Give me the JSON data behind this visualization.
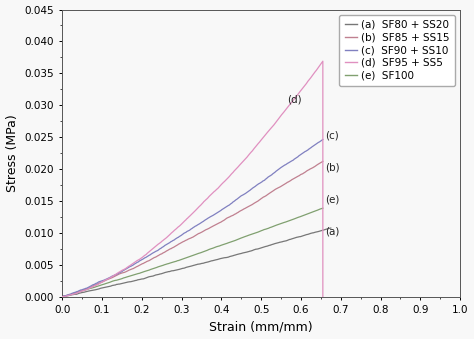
{
  "xlabel": "Strain (mm/mm)",
  "ylabel": "Stress (MPa)",
  "xlim": [
    0.0,
    1.0
  ],
  "ylim": [
    0.0,
    0.045
  ],
  "xticks": [
    0.0,
    0.1,
    0.2,
    0.3,
    0.4,
    0.5,
    0.6,
    0.7,
    0.8,
    0.9,
    1.0
  ],
  "yticks": [
    0.0,
    0.005,
    0.01,
    0.015,
    0.02,
    0.025,
    0.03,
    0.035,
    0.04,
    0.045
  ],
  "legend_labels": [
    "(a)  SF80 + SS20",
    "(b)  SF85 + SS15",
    "(c)  SF90 + SS10",
    "(d)  SF95 + SS5",
    "(e)  SF100"
  ],
  "curve_a": {
    "color": "#777777",
    "x_end": 0.675,
    "y_end": 0.0105,
    "power": 1.12,
    "noise": 0.00018,
    "seed": 10
  },
  "curve_b": {
    "color": "#c08090",
    "x_end": 0.655,
    "y_end": 0.021,
    "power": 1.18,
    "noise": 0.00025,
    "seed": 20
  },
  "curve_c": {
    "color": "#8080c0",
    "x_end": 0.655,
    "y_end": 0.025,
    "power": 1.22,
    "noise": 0.00022,
    "seed": 30
  },
  "curve_d": {
    "color": "#e090c0",
    "x_end": 0.655,
    "y_end": 0.037,
    "power": 1.5,
    "noise": 0.0002,
    "seed": 40
  },
  "curve_e": {
    "color": "#80a070",
    "x_end": 0.655,
    "y_end": 0.014,
    "power": 1.1,
    "noise": 0.00018,
    "seed": 50
  },
  "label_a": [
    0.66,
    0.0098
  ],
  "label_b": [
    0.66,
    0.0198
  ],
  "label_c": [
    0.66,
    0.0248
  ],
  "label_d": [
    0.565,
    0.0305
  ],
  "label_e": [
    0.66,
    0.0148
  ],
  "background_color": "#f8f8f8",
  "legend_fontsize": 7.5,
  "axis_fontsize": 9,
  "tick_fontsize": 7.5
}
